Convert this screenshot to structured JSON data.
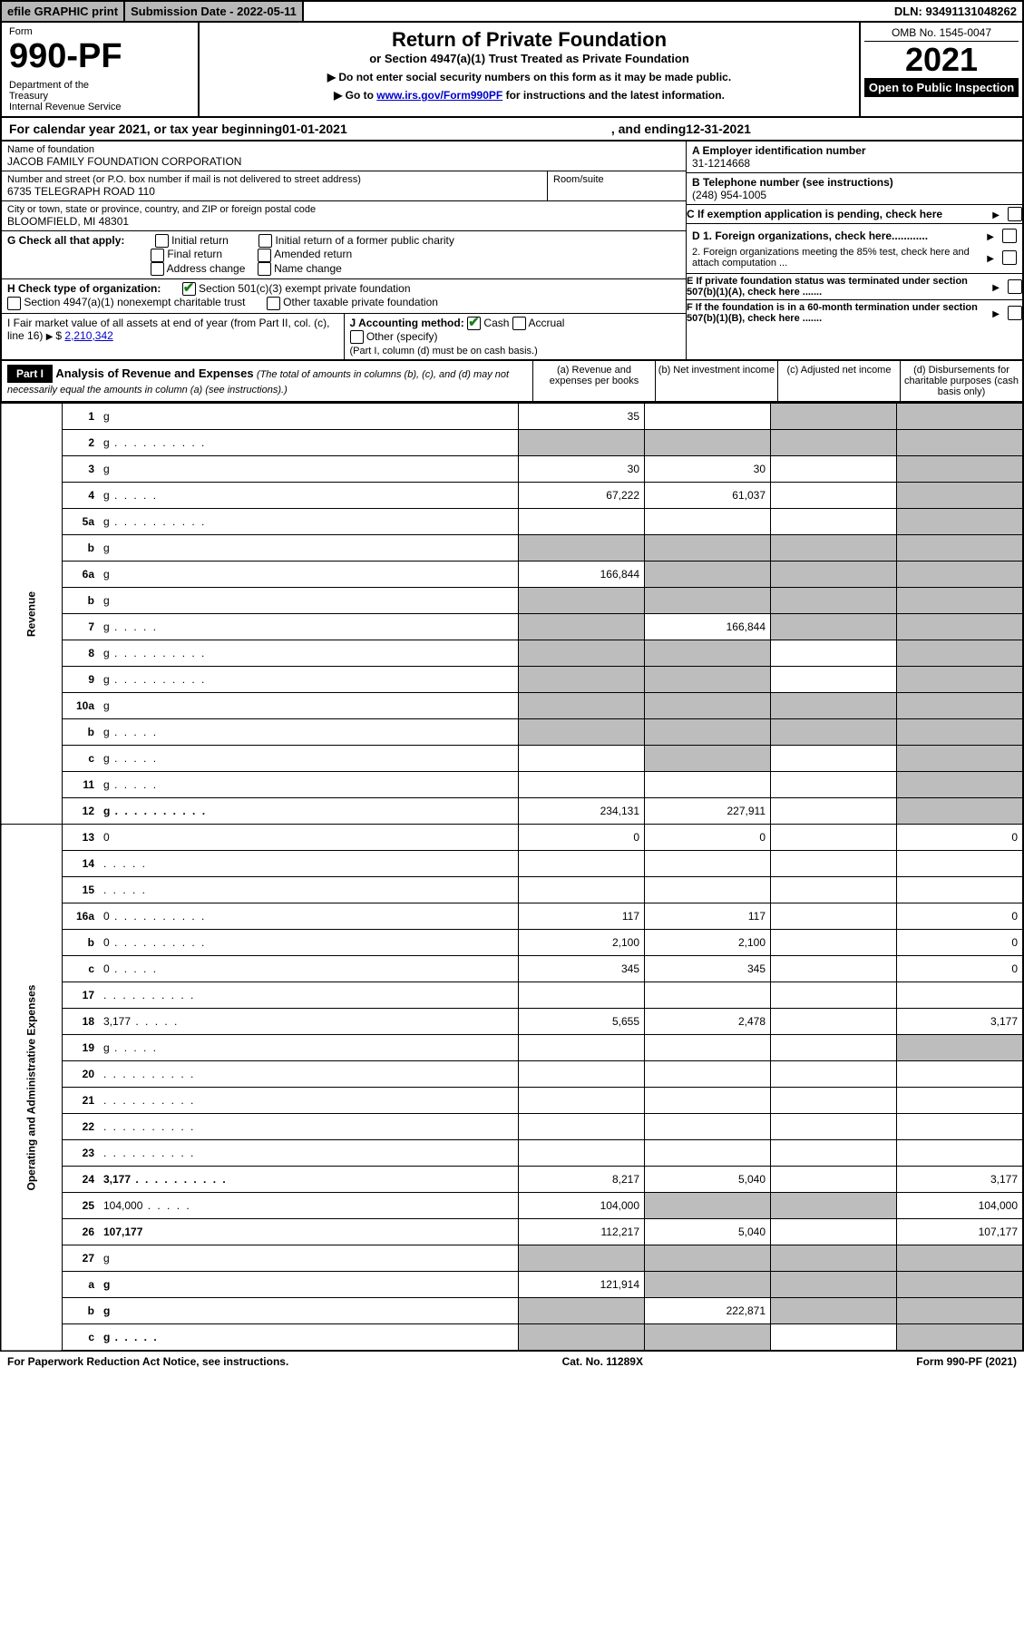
{
  "topbar": {
    "efile": "efile GRAPHIC print",
    "submission_label": "Submission Date - ",
    "submission_date": "2022-05-11",
    "dln_label": "DLN: ",
    "dln": "93491131048262"
  },
  "header": {
    "form_label": "Form",
    "form_no": "990-PF",
    "dept": "Department of the Treasury\nInternal Revenue Service",
    "title": "Return of Private Foundation",
    "subtitle": "or Section 4947(a)(1) Trust Treated as Private Foundation",
    "note1": "▶ Do not enter social security numbers on this form as it may be made public.",
    "note2_pre": "▶ Go to ",
    "note2_link": "www.irs.gov/Form990PF",
    "note2_post": " for instructions and the latest information.",
    "omb": "OMB No. 1545-0047",
    "year": "2021",
    "inspection": "Open to Public Inspection"
  },
  "calyear": {
    "pre": "For calendar year 2021, or tax year beginning ",
    "begin": "01-01-2021",
    "mid": " , and ending ",
    "end": "12-31-2021"
  },
  "entity": {
    "name_label": "Name of foundation",
    "name": "JACOB FAMILY FOUNDATION CORPORATION",
    "addr_label": "Number and street (or P.O. box number if mail is not delivered to street address)",
    "addr": "6735 TELEGRAPH ROAD 110",
    "room_label": "Room/suite",
    "city_label": "City or town, state or province, country, and ZIP or foreign postal code",
    "city": "BLOOMFIELD, MI  48301",
    "a_label": "A Employer identification number",
    "a_val": "31-1214668",
    "b_label": "B Telephone number (see instructions)",
    "b_val": "(248) 954-1005",
    "c_label": "C If exemption application is pending, check here",
    "d1_label": "D 1. Foreign organizations, check here............",
    "d2_label": "2. Foreign organizations meeting the 85% test, check here and attach computation ...",
    "e_label": "E  If private foundation status was terminated under section 507(b)(1)(A), check here .......",
    "f_label": "F  If the foundation is in a 60-month termination under section 507(b)(1)(B), check here .......",
    "g_label": "G Check all that apply:",
    "g_opts": [
      "Initial return",
      "Initial return of a former public charity",
      "Final return",
      "Amended return",
      "Address change",
      "Name change"
    ],
    "h_label": "H Check type of organization:",
    "h_opt1": "Section 501(c)(3) exempt private foundation",
    "h_opt2": "Section 4947(a)(1) nonexempt charitable trust",
    "h_opt3": "Other taxable private foundation",
    "i_label": "I Fair market value of all assets at end of year (from Part II, col. (c), line 16)",
    "i_val": "2,210,342",
    "j_label": "J Accounting method:",
    "j_cash": "Cash",
    "j_accrual": "Accrual",
    "j_other": "Other (specify)",
    "j_note": "(Part I, column (d) must be on cash basis.)"
  },
  "part1": {
    "label": "Part I",
    "title": "Analysis of Revenue and Expenses",
    "title_note": "(The total of amounts in columns (b), (c), and (d) may not necessarily equal the amounts in column (a) (see instructions).)",
    "col_a": "(a)  Revenue and expenses per books",
    "col_b": "(b)  Net investment income",
    "col_c": "(c)  Adjusted net income",
    "col_d": "(d)  Disbursements for charitable purposes (cash basis only)"
  },
  "sections": {
    "revenue": "Revenue",
    "expenses": "Operating and Administrative Expenses"
  },
  "rows": [
    {
      "n": "1",
      "d": "g",
      "a": "35",
      "b": "",
      "c": "g"
    },
    {
      "n": "2",
      "d": "g",
      "dots": true,
      "a": "g",
      "b": "g",
      "c": "g"
    },
    {
      "n": "3",
      "d": "g",
      "a": "30",
      "b": "30",
      "c": ""
    },
    {
      "n": "4",
      "d": "g",
      "dots": "s",
      "a": "67,222",
      "b": "61,037",
      "c": ""
    },
    {
      "n": "5a",
      "d": "g",
      "dots": true,
      "a": "",
      "b": "",
      "c": ""
    },
    {
      "n": "b",
      "d": "g",
      "a": "g",
      "b": "g",
      "c": "g"
    },
    {
      "n": "6a",
      "d": "g",
      "a": "166,844",
      "b": "g",
      "c": "g"
    },
    {
      "n": "b",
      "d": "g",
      "a": "g",
      "b": "g",
      "c": "g"
    },
    {
      "n": "7",
      "d": "g",
      "dots": "s",
      "a": "g",
      "b": "166,844",
      "c": "g"
    },
    {
      "n": "8",
      "d": "g",
      "dots": true,
      "a": "g",
      "b": "g",
      "c": ""
    },
    {
      "n": "9",
      "d": "g",
      "dots": true,
      "a": "g",
      "b": "g",
      "c": ""
    },
    {
      "n": "10a",
      "d": "g",
      "a": "g",
      "b": "g",
      "c": "g"
    },
    {
      "n": "b",
      "d": "g",
      "dots": "s",
      "a": "g",
      "b": "g",
      "c": "g"
    },
    {
      "n": "c",
      "d": "g",
      "dots": "s",
      "a": "",
      "b": "g",
      "c": ""
    },
    {
      "n": "11",
      "d": "g",
      "dots": "s",
      "a": "",
      "b": "",
      "c": ""
    },
    {
      "n": "12",
      "d": "g",
      "dots": true,
      "bold": true,
      "a": "234,131",
      "b": "227,911",
      "c": ""
    },
    {
      "n": "13",
      "d": "0",
      "a": "0",
      "b": "0",
      "c": ""
    },
    {
      "n": "14",
      "d": "",
      "dots": "s",
      "a": "",
      "b": "",
      "c": ""
    },
    {
      "n": "15",
      "d": "",
      "dots": "s",
      "a": "",
      "b": "",
      "c": ""
    },
    {
      "n": "16a",
      "d": "0",
      "dots": true,
      "a": "117",
      "b": "117",
      "c": ""
    },
    {
      "n": "b",
      "d": "0",
      "dots": true,
      "a": "2,100",
      "b": "2,100",
      "c": ""
    },
    {
      "n": "c",
      "d": "0",
      "dots": "s",
      "a": "345",
      "b": "345",
      "c": ""
    },
    {
      "n": "17",
      "d": "",
      "dots": true,
      "a": "",
      "b": "",
      "c": ""
    },
    {
      "n": "18",
      "d": "3,177",
      "dots": "s",
      "a": "5,655",
      "b": "2,478",
      "c": ""
    },
    {
      "n": "19",
      "d": "g",
      "dots": "s",
      "a": "",
      "b": "",
      "c": ""
    },
    {
      "n": "20",
      "d": "",
      "dots": true,
      "a": "",
      "b": "",
      "c": ""
    },
    {
      "n": "21",
      "d": "",
      "dots": true,
      "a": "",
      "b": "",
      "c": ""
    },
    {
      "n": "22",
      "d": "",
      "dots": true,
      "a": "",
      "b": "",
      "c": ""
    },
    {
      "n": "23",
      "d": "",
      "dots": true,
      "a": "",
      "b": "",
      "c": ""
    },
    {
      "n": "24",
      "d": "3,177",
      "dots": true,
      "bold": true,
      "a": "8,217",
      "b": "5,040",
      "c": ""
    },
    {
      "n": "25",
      "d": "104,000",
      "dots": "s",
      "a": "104,000",
      "b": "g",
      "c": "g"
    },
    {
      "n": "26",
      "d": "107,177",
      "bold": true,
      "a": "112,217",
      "b": "5,040",
      "c": ""
    },
    {
      "n": "27",
      "d": "g",
      "a": "g",
      "b": "g",
      "c": "g"
    },
    {
      "n": "a",
      "d": "g",
      "bold": true,
      "a": "121,914",
      "b": "g",
      "c": "g"
    },
    {
      "n": "b",
      "d": "g",
      "bold": true,
      "a": "g",
      "b": "222,871",
      "c": "g"
    },
    {
      "n": "c",
      "d": "g",
      "dots": "s",
      "bold": true,
      "a": "g",
      "b": "g",
      "c": ""
    }
  ],
  "footer": {
    "left": "For Paperwork Reduction Act Notice, see instructions.",
    "mid": "Cat. No. 11289X",
    "right": "Form 990-PF (2021)"
  }
}
